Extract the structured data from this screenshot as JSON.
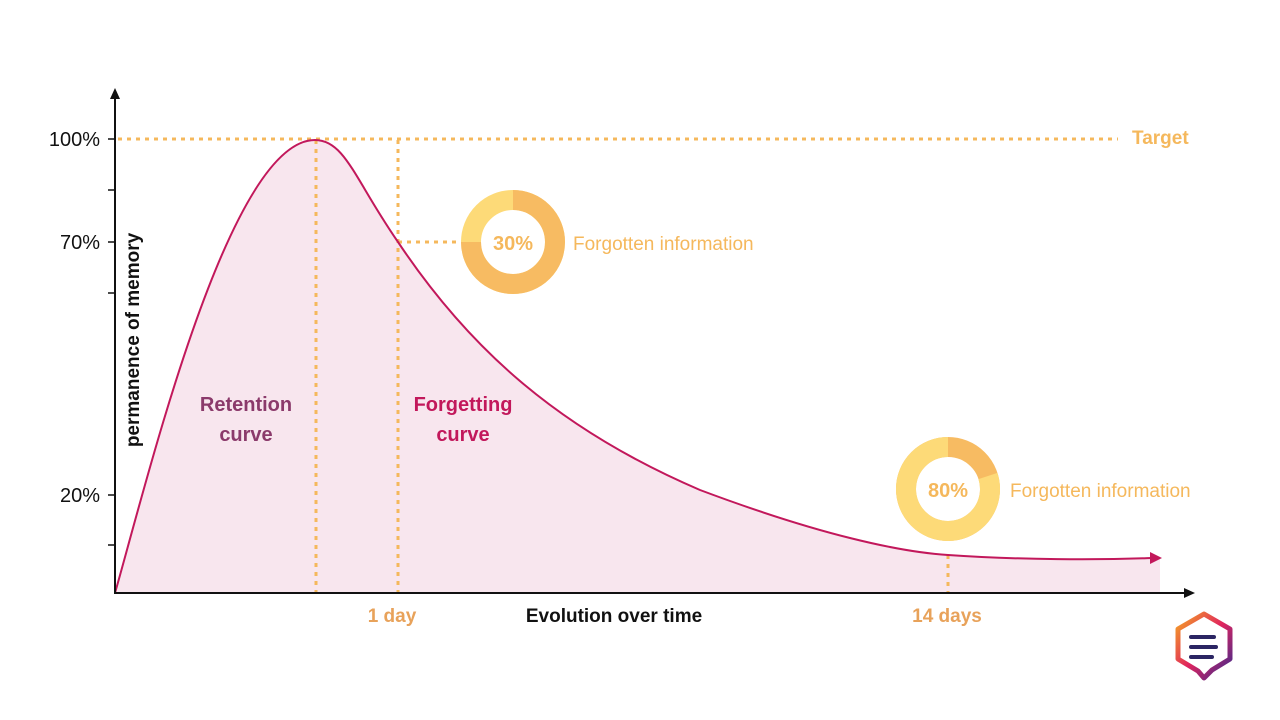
{
  "chart_data": {
    "type": "area",
    "xlabel": "Evolution over time",
    "ylabel": "permanence of memory",
    "y_ticks": [
      "100%",
      "70%",
      "20%"
    ],
    "x_ticks": [
      "1 day",
      "14 days"
    ],
    "target_label": "Target",
    "region_labels": {
      "retention": [
        "Retention",
        "curve"
      ],
      "forgetting": [
        "Forgetting",
        "curve"
      ]
    },
    "callouts": [
      {
        "value": "30%",
        "fraction": 0.3,
        "label": "Forgotten information"
      },
      {
        "value": "80%",
        "fraction": 0.8,
        "label": "Forgotten information"
      }
    ],
    "legend": "none"
  },
  "colors": {
    "curve": "#c2185b",
    "area_fill": "#f8e6ee",
    "guide": "#f5b85c",
    "donut_dark": "#f7bb62",
    "donut_light": "#fdda78",
    "retention_text": "#8b3a6b",
    "forgetting_text": "#c2185b",
    "tick_orange": "#e8a25a",
    "axis": "#111111"
  },
  "logo": {
    "name": "hexagon-logo-icon"
  }
}
